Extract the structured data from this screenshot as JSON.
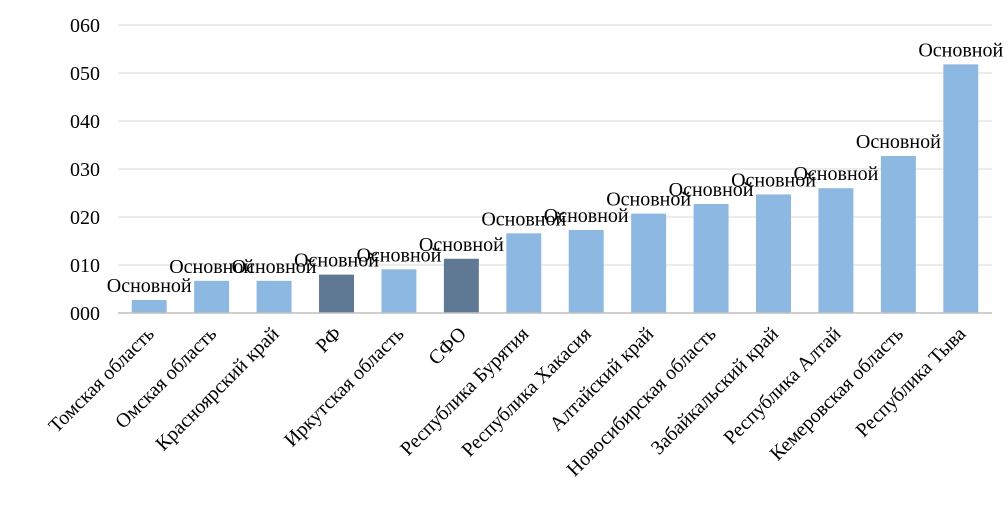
{
  "chart_data": {
    "type": "bar",
    "categories": [
      "Томская область",
      "Омская область",
      "Красноярский край",
      "РФ",
      "Иркутская область",
      "СФО",
      "Республика Бурятия",
      "Республика Хакасия",
      "Алтайский край",
      "Новосибирская область",
      "Забайкальский край",
      "Республика Алтай",
      "Кемеровская область",
      "Республика Тыва"
    ],
    "values": [
      2.7,
      6.7,
      6.7,
      8.0,
      9.1,
      11.3,
      16.6,
      17.3,
      20.7,
      22.7,
      24.7,
      26.0,
      32.7,
      51.8
    ],
    "highlighted": [
      "РФ",
      "СФО"
    ],
    "data_label": "Основной",
    "yticks": [
      "000",
      "010",
      "020",
      "030",
      "040",
      "050",
      "060"
    ],
    "ylim": [
      0,
      60
    ],
    "grid": true,
    "colors": {
      "bar": "#8db8e2",
      "bar_highlight": "#5f7894",
      "grid": "#d9d9d9",
      "axis": "#bfbfbf"
    }
  }
}
